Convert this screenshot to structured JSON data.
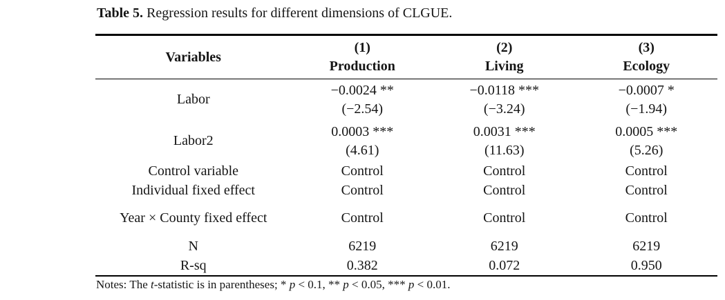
{
  "caption": {
    "label": "Table 5.",
    "text": " Regression results for different dimensions of CLGUE."
  },
  "table": {
    "header": {
      "variables_label": "Variables",
      "columns": [
        {
          "number": "(1)",
          "name": "Production"
        },
        {
          "number": "(2)",
          "name": "Living"
        },
        {
          "number": "(3)",
          "name": "Ecology"
        }
      ]
    },
    "rows": [
      {
        "label": "Labor",
        "values": [
          "−0.0024 **",
          "−0.0118 ***",
          "−0.0007 *"
        ],
        "tstats": [
          "(−2.54)",
          "(−3.24)",
          "(−1.94)"
        ]
      },
      {
        "label": "Labor2",
        "values": [
          "0.0003 ***",
          "0.0031 ***",
          "0.0005 ***"
        ],
        "tstats": [
          "(4.61)",
          "(11.63)",
          "(5.26)"
        ]
      },
      {
        "label": "Control variable",
        "values": [
          "Control",
          "Control",
          "Control"
        ]
      },
      {
        "label": "Individual fixed effect",
        "values": [
          "Control",
          "Control",
          "Control"
        ]
      },
      {
        "label": "Year × County fixed effect",
        "values": [
          "Control",
          "Control",
          "Control"
        ]
      },
      {
        "label": "N",
        "values": [
          "6219",
          "6219",
          "6219"
        ]
      },
      {
        "label": "R-sq",
        "values": [
          "0.382",
          "0.072",
          "0.950"
        ]
      }
    ]
  },
  "notes": {
    "prefix": "Notes: The ",
    "t_italic": "t",
    "seg1": "-statistic is in parentheses; * ",
    "p1": "p",
    "seg2": " < 0.1, ** ",
    "p2": "p",
    "seg3": " < 0.05, *** ",
    "p3": "p",
    "seg4": " < 0.01."
  }
}
